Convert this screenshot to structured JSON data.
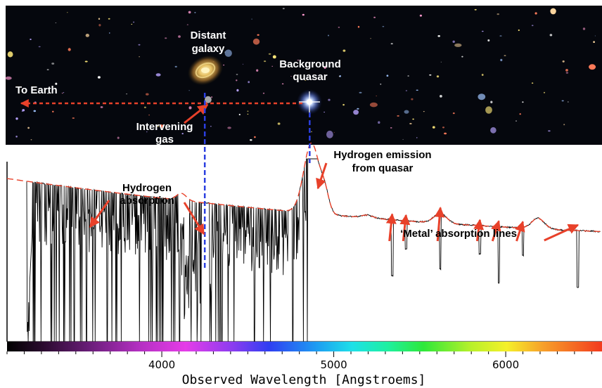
{
  "panel": {
    "labels": {
      "distant_galaxy_line1": "Distant",
      "distant_galaxy_line2": "galaxy",
      "background_quasar_line1": "Background",
      "background_quasar_line2": "quasar",
      "to_earth": "To Earth",
      "intervening_gas_line1": "Intervening",
      "intervening_gas_line2": "gas"
    }
  },
  "chart_data": {
    "type": "line",
    "xlabel": "Observed Wavelength [Angstroems]",
    "ylabel": "",
    "xlim": [
      3100,
      6560
    ],
    "x_ticks": [
      "4000",
      "5000",
      "6000"
    ],
    "x_tick_values": [
      4000,
      5000,
      6000
    ],
    "y_axis_ticks": "none",
    "grid": false,
    "legend": "none",
    "annotations": {
      "hydrogen_absorption_line1": "Hydrogen",
      "hydrogen_absorption_line2": "absorption",
      "hydrogen_emission_line1": "Hydrogen emission",
      "hydrogen_emission_line2": "from quasar",
      "metal_lines": "‘Metal’ absorption lines"
    },
    "features": {
      "galaxy_absorption_wavelength": 4250,
      "quasar_emission_peak_wavelength": 4860,
      "metal_absorption_wavelengths": [
        5340,
        5420,
        5620,
        5850,
        5960,
        6100,
        6420
      ]
    },
    "colors": {
      "continuum_fit": "#e8412a",
      "spectrum": "#000000",
      "guide_lines": "#2b3fe0",
      "earth_ray": "#e8412a",
      "arrows": "#e8412a"
    }
  }
}
